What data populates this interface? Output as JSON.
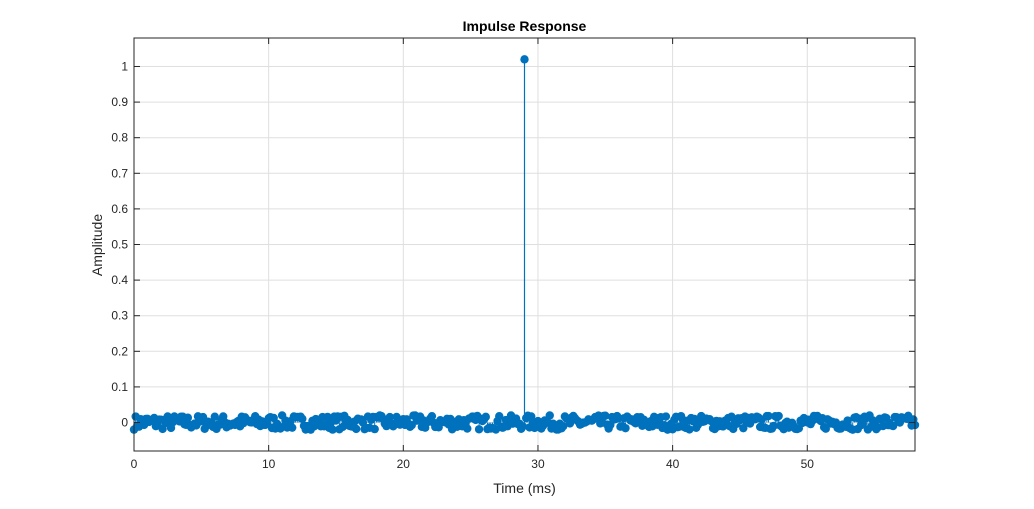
{
  "chart_data": {
    "type": "stem",
    "title": "Impulse Response",
    "xlabel": "Time (ms)",
    "ylabel": "Amplitude",
    "xlim": [
      0,
      58
    ],
    "ylim": [
      -0.08,
      1.08
    ],
    "xticks": [
      0,
      10,
      20,
      30,
      40,
      50
    ],
    "yticks": [
      0,
      0.1,
      0.2,
      0.3,
      0.4,
      0.5,
      0.6,
      0.7,
      0.8,
      0.9,
      1
    ],
    "grid": true,
    "color": "#0072BD",
    "sample_spacing_ms": 0.125,
    "samples": 465,
    "noise_amplitude": 0.02,
    "impulse": {
      "x": 29,
      "y": 1.02
    }
  }
}
